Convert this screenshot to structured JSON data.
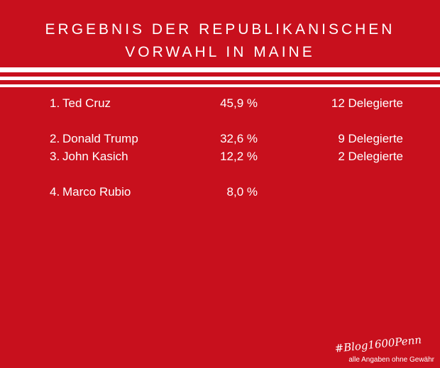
{
  "title": {
    "line1": "ERGEBNIS DER REPUBLIKANISCHEN",
    "line2": "VORWAHL IN MAINE"
  },
  "results": [
    {
      "rank": "1.",
      "name": "Ted Cruz",
      "percent": "45,9 %",
      "delegates": "12 Delegierte"
    },
    {
      "rank": "2.",
      "name": "Donald Trump",
      "percent": "32,6 %",
      "delegates": "9 Delegierte"
    },
    {
      "rank": "3.",
      "name": "John Kasich",
      "percent": "12,2 %",
      "delegates": "2 Delegierte"
    },
    {
      "rank": "4.",
      "name": "Marco Rubio",
      "percent": "8,0 %",
      "delegates": ""
    }
  ],
  "hashtag": "#Blog1600Penn",
  "disclaimer": "alle Angaben ohne Gewähr",
  "colors": {
    "background": "#c8101d",
    "foreground": "#ffffff"
  }
}
